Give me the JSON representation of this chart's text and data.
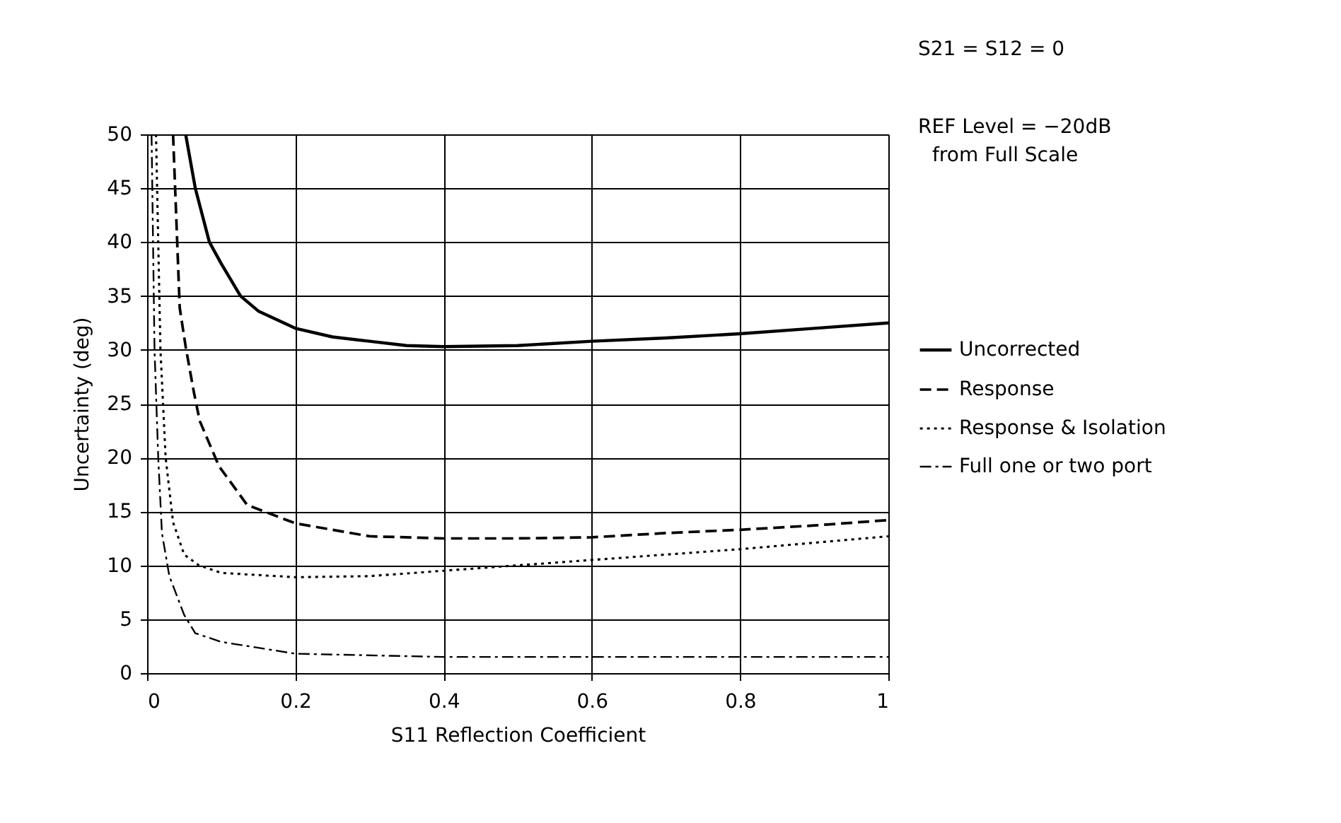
{
  "chart_data": {
    "type": "line",
    "xlabel": "S11 Reflection Coefficient",
    "ylabel": "Uncertainty (deg)",
    "xlim": [
      0,
      1
    ],
    "xticks": [
      0,
      0.2,
      0.4,
      0.6,
      0.8,
      1
    ],
    "ylim": [
      0,
      50
    ],
    "yticks": [
      0,
      5,
      10,
      15,
      20,
      25,
      30,
      35,
      40,
      45,
      50
    ],
    "grid": true,
    "legend": "right",
    "marker": "none",
    "annotations": [
      "S21 = S12 = 0",
      "REF Level = −20dB",
      "from Full Scale"
    ],
    "series": [
      {
        "name": "Uncorrected",
        "color": "#000000",
        "line_style": "solid",
        "x": [
          0.052,
          0.065,
          0.084,
          0.1,
          0.126,
          0.15,
          0.2,
          0.25,
          0.3,
          0.35,
          0.4,
          0.5,
          0.6,
          0.7,
          0.8,
          0.9,
          1.0
        ],
        "values": [
          50,
          45,
          40,
          38,
          35,
          33.6,
          32.0,
          31.2,
          30.8,
          30.4,
          30.3,
          30.4,
          30.8,
          31.1,
          31.5,
          32.0,
          32.5
        ]
      },
      {
        "name": "Response",
        "color": "#000000",
        "line_style": "dashed",
        "x": [
          0.035,
          0.044,
          0.052,
          0.063,
          0.071,
          0.097,
          0.135,
          0.2,
          0.3,
          0.4,
          0.5,
          0.6,
          0.7,
          0.8,
          0.9,
          1.0
        ],
        "values": [
          50,
          33.9,
          30.3,
          26.1,
          23.4,
          19.2,
          15.6,
          13.9,
          12.7,
          12.5,
          12.5,
          12.6,
          13.0,
          13.3,
          13.7,
          14.2
        ]
      },
      {
        "name": "Response & Isolation",
        "color": "#000000",
        "line_style": "dotted",
        "x": [
          0.012,
          0.018,
          0.025,
          0.035,
          0.05,
          0.07,
          0.1,
          0.2,
          0.3,
          0.4,
          0.5,
          0.6,
          0.7,
          0.8,
          0.9,
          1.0
        ],
        "values": [
          50,
          30,
          20,
          14,
          11,
          10,
          9.3,
          8.9,
          9.0,
          9.5,
          10,
          10.5,
          11,
          11.5,
          12.1,
          12.7
        ]
      },
      {
        "name": "Full one or two port",
        "color": "#000000",
        "line_style": "dashdot",
        "x": [
          0.006,
          0.01,
          0.015,
          0.02,
          0.03,
          0.05,
          0.065,
          0.1,
          0.2,
          0.4,
          0.6,
          0.8,
          1.0
        ],
        "values": [
          50,
          30,
          20,
          13,
          9,
          5.4,
          3.7,
          2.9,
          1.8,
          1.5,
          1.5,
          1.5,
          1.5
        ]
      }
    ]
  }
}
